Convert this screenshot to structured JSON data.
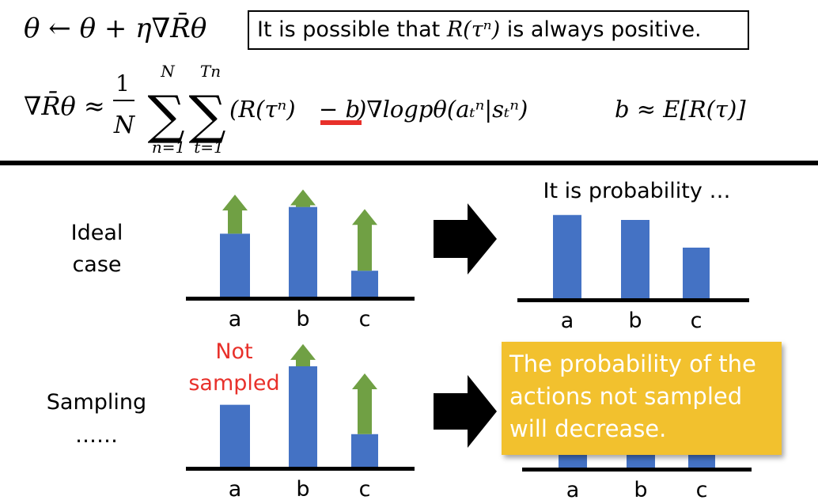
{
  "top": {
    "update_rule": "θ ← θ + η∇R̄θ",
    "note_prefix": "It is possible that ",
    "note_math": "R(τⁿ)",
    "note_suffix": " is always positive.",
    "baseline": "b ≈ E[R(τ)]"
  },
  "gradient_formula": {
    "lhs": "∇R̄θ ≈",
    "frac_num": "1",
    "frac_den": "N",
    "sum1_upper": "N",
    "sum1_lower": "n=1",
    "sum2_upper": "Tn",
    "sum2_lower": "t=1",
    "body_a": "(R(τⁿ)",
    "body_b": "− b",
    "body_c": ")∇logpθ(aₜⁿ|sₜⁿ)"
  },
  "rows": {
    "ideal_label": "Ideal case",
    "sampling_label": "Sampling ……",
    "not_sampled": "Not sampled",
    "result_title": "It is probability …",
    "decrease_note": "The probability of the actions not sampled will decrease."
  },
  "colors": {
    "bar": "#4472c4",
    "arrow": "#70a044",
    "red": "#e8302a",
    "note_bg": "#f2c12e"
  },
  "chart_data": [
    {
      "type": "bar",
      "title": "",
      "categories": [
        "a",
        "b",
        "c"
      ],
      "values": [
        0.62,
        0.88,
        0.26
      ],
      "updates": [
        0.38,
        0.17,
        0.6
      ]
    },
    {
      "type": "bar",
      "title": "It is probability …",
      "categories": [
        "a",
        "b",
        "c"
      ],
      "values": [
        0.85,
        0.8,
        0.52
      ]
    },
    {
      "type": "bar",
      "title": "",
      "categories": [
        "a",
        "b",
        "c"
      ],
      "values": [
        0.62,
        1.0,
        0.33
      ],
      "updates": [
        0.0,
        0.22,
        0.6
      ]
    },
    {
      "type": "bar",
      "title": "",
      "categories": [
        "a",
        "b",
        "c"
      ],
      "values": [
        0.15,
        0.15,
        0.15
      ]
    }
  ]
}
